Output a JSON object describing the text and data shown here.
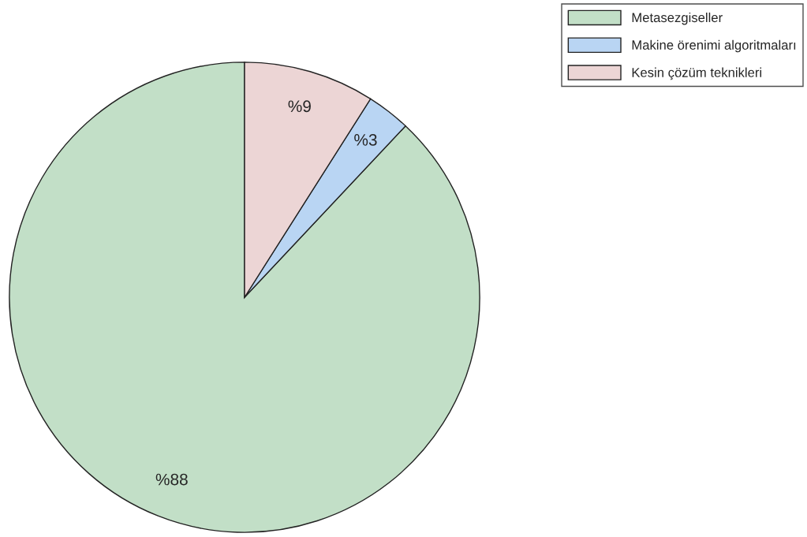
{
  "chart_data": {
    "type": "pie",
    "categories": [
      "Metasezgiseller",
      "Makine örenimi algoritmaları",
      "Kesin çözüm teknikleri"
    ],
    "values": [
      88,
      3,
      9
    ],
    "colors": [
      "#c2dfc7",
      "#b9d5f3",
      "#ecd5d5"
    ],
    "value_labels": [
      "%88",
      "%3",
      "%9"
    ],
    "legend": "top right"
  }
}
